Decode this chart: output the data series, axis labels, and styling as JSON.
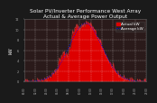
{
  "title": "Solar PV/Inverter Performance West Array\nActual & Average Power Output",
  "title_fontsize": 4.2,
  "bg_color": "#1a1a1a",
  "plot_bg_color": "#2a1a1a",
  "fill_color": "#dd0000",
  "line_color": "#ff4444",
  "avg_line_color": "#0000ff",
  "grid_color": "#ffffff",
  "text_color": "#ffffff",
  "tick_color": "#aaaaaa",
  "xlabel": "",
  "ylabel": "kW",
  "ylabel_fontsize": 3.5,
  "ylim": [
    0,
    12
  ],
  "yticks": [
    0,
    2,
    4,
    6,
    8,
    10,
    12
  ],
  "n_points": 288,
  "peak_kw": 11.5,
  "legend_actual": "Actual kW",
  "legend_avg": "Average kW",
  "legend_fontsize": 3.0
}
